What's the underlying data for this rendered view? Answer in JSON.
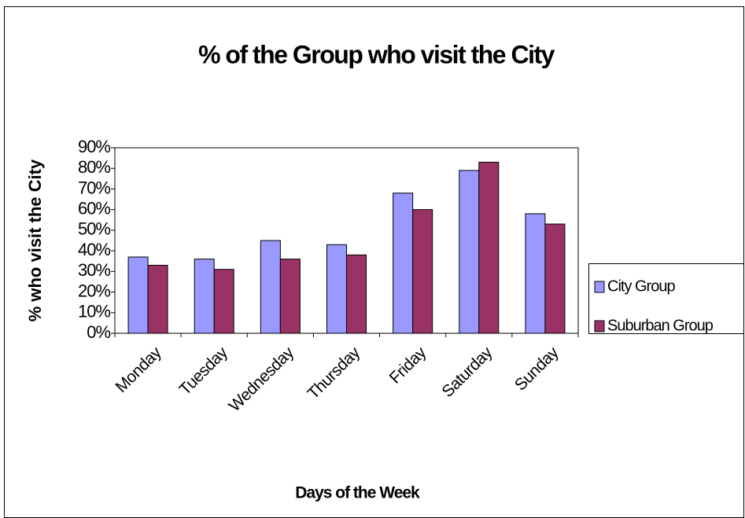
{
  "chart_data": {
    "type": "bar",
    "title": "% of the Group who visit the City",
    "x_label": "Days of the Week",
    "y_label": "% who visit the City",
    "categories": [
      "Monday",
      "Tuesday",
      "Wednesday",
      "Thursday",
      "Friday",
      "Saturday",
      "Sunday"
    ],
    "series": [
      {
        "name": "City Group",
        "color": "#9999ff",
        "values": [
          37,
          36,
          45,
          43,
          68,
          79,
          58
        ]
      },
      {
        "name": "Suburban Group",
        "color": "#993366",
        "values": [
          33,
          31,
          36,
          38,
          60,
          83,
          53
        ]
      }
    ],
    "ylim": [
      0,
      90
    ],
    "yticks": [
      {
        "value": 0,
        "label": "0%"
      },
      {
        "value": 10,
        "label": "10%"
      },
      {
        "value": 20,
        "label": "20%"
      },
      {
        "value": 30,
        "label": "30%"
      },
      {
        "value": 40,
        "label": "40%"
      },
      {
        "value": 50,
        "label": "50%"
      },
      {
        "value": 60,
        "label": "60%"
      },
      {
        "value": 70,
        "label": "70%"
      },
      {
        "value": 80,
        "label": "80%"
      },
      {
        "value": 90,
        "label": "90%"
      }
    ],
    "grid": false,
    "legend": "right"
  }
}
